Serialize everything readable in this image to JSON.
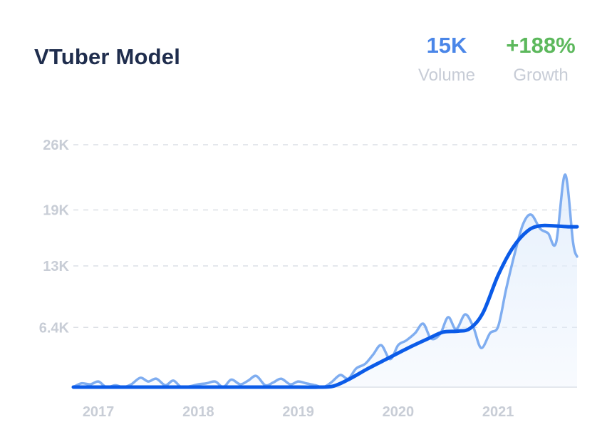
{
  "header": {
    "title": "VTuber Model",
    "volume": {
      "value": "15K",
      "label": "Volume"
    },
    "growth": {
      "value": "+188%",
      "label": "Growth"
    }
  },
  "colors": {
    "volume": "#4a86e8",
    "growth": "#5cb85c",
    "raw_line": "#7fadf0",
    "trend_line": "#0b5be8",
    "area": "#e3eefc",
    "grid": "#dcdfe5",
    "tick_text": "#c8cdd6"
  },
  "chart_data": {
    "type": "line",
    "title": "VTuber Model",
    "xlabel": "",
    "ylabel": "",
    "y_ticks": [
      0,
      6400,
      13000,
      19000,
      26000
    ],
    "y_tick_labels": [
      "",
      "6.4K",
      "13K",
      "19K",
      "26K"
    ],
    "x_ticks": [
      2017,
      2018,
      2019,
      2020,
      2021
    ],
    "x_tick_labels": [
      "2017",
      "2018",
      "2019",
      "2020",
      "2021"
    ],
    "xlim": [
      2016.75,
      2021.79
    ],
    "ylim": [
      0,
      26000
    ],
    "grid": true,
    "series": [
      {
        "role": "raw",
        "x": [
          2016.75,
          2016.83,
          2016.92,
          2017.0,
          2017.08,
          2017.17,
          2017.25,
          2017.33,
          2017.42,
          2017.5,
          2017.58,
          2017.67,
          2017.75,
          2017.83,
          2017.92,
          2018.0,
          2018.08,
          2018.17,
          2018.25,
          2018.33,
          2018.42,
          2018.5,
          2018.58,
          2018.67,
          2018.75,
          2018.83,
          2018.92,
          2019.0,
          2019.08,
          2019.17,
          2019.25,
          2019.33,
          2019.42,
          2019.5,
          2019.58,
          2019.67,
          2019.75,
          2019.83,
          2019.92,
          2020.0,
          2020.08,
          2020.17,
          2020.25,
          2020.33,
          2020.42,
          2020.5,
          2020.58,
          2020.67,
          2020.75,
          2020.83,
          2020.92,
          2021.0,
          2021.08,
          2021.17,
          2021.25,
          2021.33,
          2021.42,
          2021.5,
          2021.58,
          2021.67,
          2021.75,
          2021.79
        ],
        "values": [
          0,
          400,
          300,
          600,
          0,
          200,
          0,
          300,
          1000,
          600,
          900,
          200,
          700,
          0,
          100,
          300,
          400,
          600,
          0,
          800,
          300,
          700,
          1200,
          200,
          500,
          900,
          300,
          600,
          400,
          200,
          0,
          500,
          1300,
          900,
          2000,
          2500,
          3500,
          4500,
          3000,
          4500,
          5000,
          5800,
          6800,
          5200,
          5700,
          7500,
          6200,
          7800,
          6500,
          4200,
          5800,
          6500,
          10500,
          14500,
          17500,
          18500,
          17000,
          16500,
          15500,
          22800,
          15500,
          14000
        ]
      },
      {
        "role": "trend",
        "x": [
          2016.75,
          2017.0,
          2017.5,
          2018.0,
          2018.5,
          2019.0,
          2019.2,
          2019.35,
          2019.5,
          2019.7,
          2019.9,
          2020.1,
          2020.3,
          2020.45,
          2020.6,
          2020.72,
          2020.85,
          2021.0,
          2021.15,
          2021.3,
          2021.42,
          2021.55,
          2021.7,
          2021.79
        ],
        "values": [
          0,
          0,
          0,
          0,
          0,
          0,
          0,
          100,
          800,
          2000,
          3100,
          4200,
          5200,
          5900,
          6000,
          6300,
          8000,
          12000,
          15000,
          16800,
          17300,
          17300,
          17200,
          17200
        ]
      }
    ]
  }
}
